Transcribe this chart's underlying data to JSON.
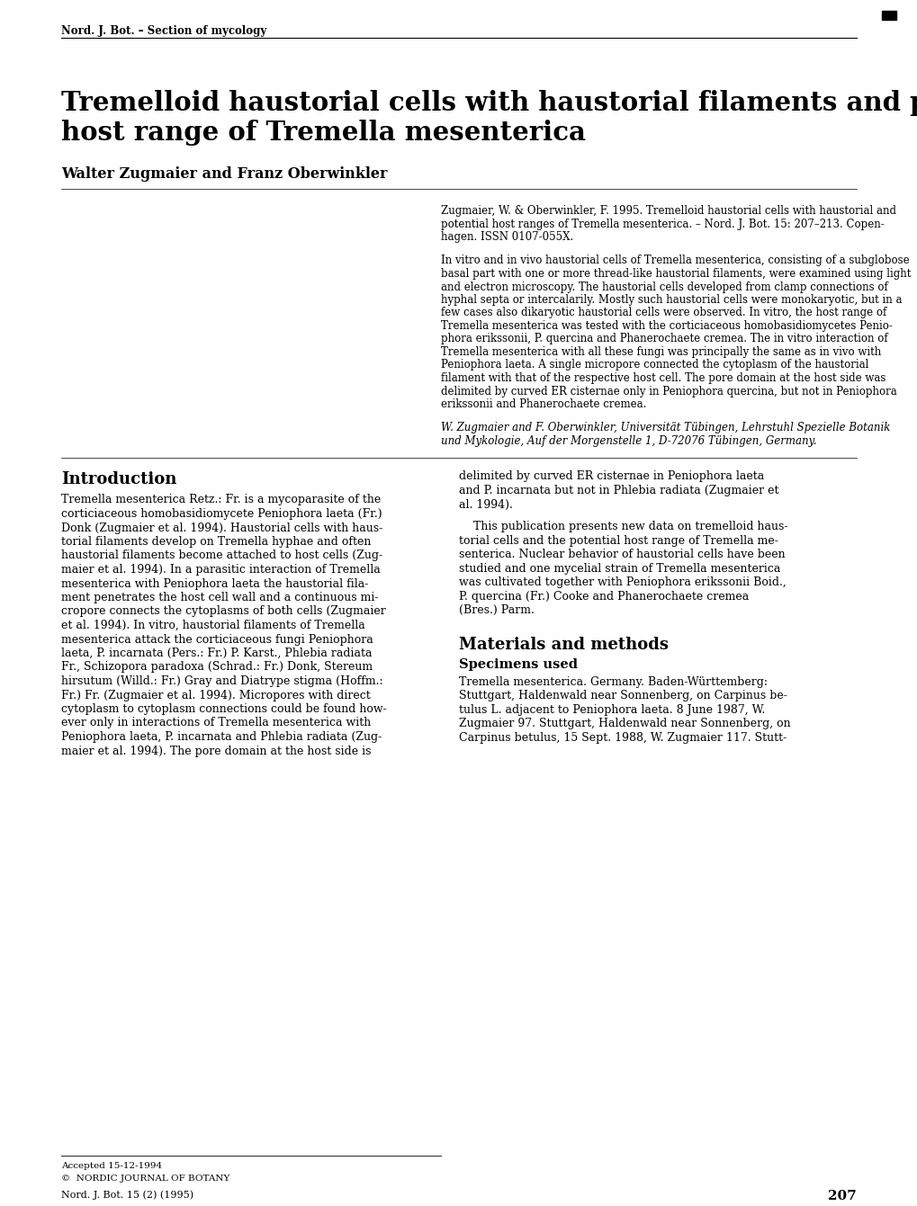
{
  "header": "Nord. J. Bot. – Section of mycology",
  "title_line1": "Tremelloid haustorial cells with haustorial filaments and potential",
  "title_line2": "host range of Tremella mesenterica",
  "authors": "Walter Zugmaier and Franz Oberwinkler",
  "citation_lines": [
    "Zugmaier, W. & Oberwinkler, F. 1995. Tremelloid haustorial cells with haustorial and",
    "potential host ranges of Tremella mesenterica. – Nord. J. Bot. 15: 207–213. Copen-",
    "hagen. ISSN 0107-055X."
  ],
  "abstract_lines": [
    "In vitro and in vivo haustorial cells of Tremella mesenterica, consisting of a subglobose",
    "basal part with one or more thread-like haustorial filaments, were examined using light",
    "and electron microscopy. The haustorial cells developed from clamp connections of",
    "hyphal septa or intercalarily. Mostly such haustorial cells were monokaryotic, but in a",
    "few cases also dikaryotic haustorial cells were observed. In vitro, the host range of",
    "Tremella mesenterica was tested with the corticiaceous homobasidiomycetes Penio-",
    "phora erikssonii, P. quercina and Phanerochaete cremea. The in vitro interaction of",
    "Tremella mesenterica with all these fungi was principally the same as in vivo with",
    "Peniophora laeta. A single micropore connected the cytoplasm of the haustorial",
    "filament with that of the respective host cell. The pore domain at the host side was",
    "delimited by curved ER cisternae only in Peniophora quercina, but not in Peniophora",
    "erikssonii and Phanerochaete cremea."
  ],
  "address_lines": [
    "W. Zugmaier and F. Oberwinkler, Universität Tübingen, Lehrstuhl Spezielle Botanik",
    "und Mykologie, Auf der Morgenstelle 1, D-72076 Tübingen, Germany."
  ],
  "left_col_lines": [
    "Tremella mesenterica Retz.: Fr. is a mycoparasite of the",
    "corticiaceous homobasidiomycete Peniophora laeta (Fr.)",
    "Donk (Zugmaier et al. 1994). Haustorial cells with haus-",
    "torial filaments develop on Tremella hyphae and often",
    "haustorial filaments become attached to host cells (Zug-",
    "maier et al. 1994). In a parasitic interaction of Tremella",
    "mesenterica with Peniophora laeta the haustorial fila-",
    "ment penetrates the host cell wall and a continuous mi-",
    "cropore connects the cytoplasms of both cells (Zugmaier",
    "et al. 1994). In vitro, haustorial filaments of Tremella",
    "mesenterica attack the corticiaceous fungi Peniophora",
    "laeta, P. incarnata (Pers.: Fr.) P. Karst., Phlebia radiata",
    "Fr., Schizopora paradoxa (Schrad.: Fr.) Donk, Stereum",
    "hirsutum (Willd.: Fr.) Gray and Diatrype stigma (Hoffm.:",
    "Fr.) Fr. (Zugmaier et al. 1994). Micropores with direct",
    "cytoplasm to cytoplasm connections could be found how-",
    "ever only in interactions of Tremella mesenterica with",
    "Peniophora laeta, P. incarnata and Phlebia radiata (Zug-",
    "maier et al. 1994). The pore domain at the host side is"
  ],
  "right_col_lines": [
    "delimited by curved ER cisternae in Peniophora laeta",
    "and P. incarnata but not in Phlebia radiata (Zugmaier et",
    "al. 1994).",
    "",
    "    This publication presents new data on tremelloid haus-",
    "torial cells and the potential host range of Tremella me-",
    "senterica. Nuclear behavior of haustorial cells have been",
    "studied and one mycelial strain of Tremella mesenterica",
    "was cultivated together with Peniophora erikssonii Boid.,",
    "P. quercina (Fr.) Cooke and Phanerochaete cremea",
    "(Bres.) Parm."
  ],
  "materials_heading": "Materials and methods",
  "specimens_subheading": "Specimens used",
  "specimens_lines": [
    "Tremella mesenterica. Germany. Baden-Württemberg:",
    "Stuttgart, Haldenwald near Sonnenberg, on Carpinus be-",
    "tulus L. adjacent to Peniophora laeta. 8 June 1987, W.",
    "Zugmaier 97. Stuttgart, Haldenwald near Sonnenberg, on",
    "Carpinus betulus, 15 Sept. 1988, W. Zugmaier 117. Stutt-"
  ],
  "footer_accepted": "Accepted 15-12-1994",
  "footer_copyright": "©  NORDIC JOURNAL OF BOTANY",
  "footer_journal": "Nord. J. Bot. 15 (2) (1995)",
  "footer_page": "207",
  "bg_color": "#ffffff"
}
